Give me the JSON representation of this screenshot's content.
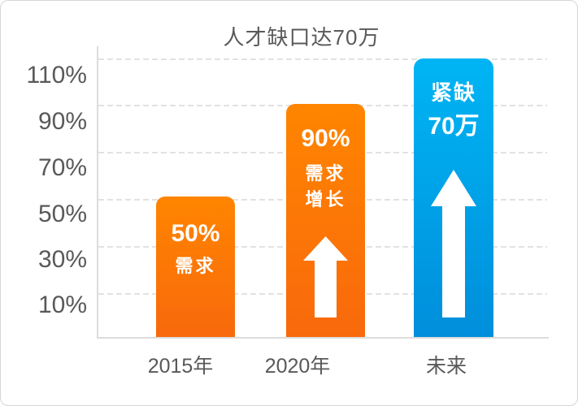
{
  "chart_data": {
    "type": "bar",
    "title": "人才缺口达70万",
    "categories": [
      "2015年",
      "2020年",
      "未来"
    ],
    "yticks": [
      "110%",
      "90%",
      "70%",
      "50%",
      "30%",
      "10%"
    ],
    "ylim": [
      0,
      120
    ],
    "grid": "horizontal-dashed",
    "legend": "none",
    "bars": [
      {
        "category": "2015年",
        "value_pct": 50,
        "color": "#ff7e00",
        "line1": "50%",
        "line2": "需求",
        "has_arrow": false
      },
      {
        "category": "2020年",
        "value_pct": 90,
        "color": "#ff7e00",
        "line1": "90%",
        "line2": "需求",
        "line3": "增长",
        "has_arrow": true
      },
      {
        "category": "未来",
        "value_pct": 112,
        "color": "#00a8ee",
        "line1": "紧缺",
        "line2": "70万",
        "has_arrow": true
      }
    ],
    "colors": {
      "orange_top": "#ff8500",
      "orange_bottom": "#f8690c",
      "blue_top": "#00b5f4",
      "blue_bottom": "#008edb",
      "gridline": "#e2e2e2",
      "axis": "#dcdcdc",
      "text": "#595959",
      "bar_text": "#ffffff"
    }
  }
}
